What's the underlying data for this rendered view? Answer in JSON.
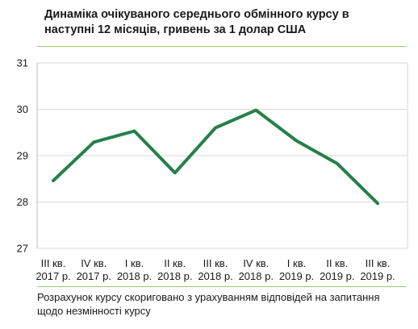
{
  "title_line1": "Динаміка очікуваного середнього обмінного курсу в",
  "title_line2": "наступні 12 місяців, гривень за 1 долар США",
  "footnote_line1": "Розрахунок курсу скориговано з урахуванням відповідей на запитання",
  "footnote_line2": "щодо незмінності курсу",
  "colors": {
    "line": "#24804a",
    "grid": "#d9d9d9",
    "rule": "#9cc87a"
  },
  "chart_data": {
    "type": "line",
    "categories": [
      [
        "III кв.",
        "2017 р."
      ],
      [
        "IV кв.",
        "2017 р."
      ],
      [
        "I кв.",
        "2018 р."
      ],
      [
        "II кв.",
        "2018 р."
      ],
      [
        "III кв.",
        "2018 р."
      ],
      [
        "IV кв.",
        "2018 р."
      ],
      [
        "I кв.",
        "2019 р."
      ],
      [
        "II кв.",
        "2019 р."
      ],
      [
        "III кв.",
        "2019 р."
      ]
    ],
    "series": [
      {
        "values": [
          28.46,
          29.29,
          29.53,
          28.63,
          29.6,
          29.98,
          29.32,
          28.83,
          27.97
        ]
      }
    ],
    "ylim": [
      27,
      31
    ],
    "yticks": [
      27,
      28,
      29,
      30,
      31
    ],
    "grid": true,
    "legend": "none"
  }
}
